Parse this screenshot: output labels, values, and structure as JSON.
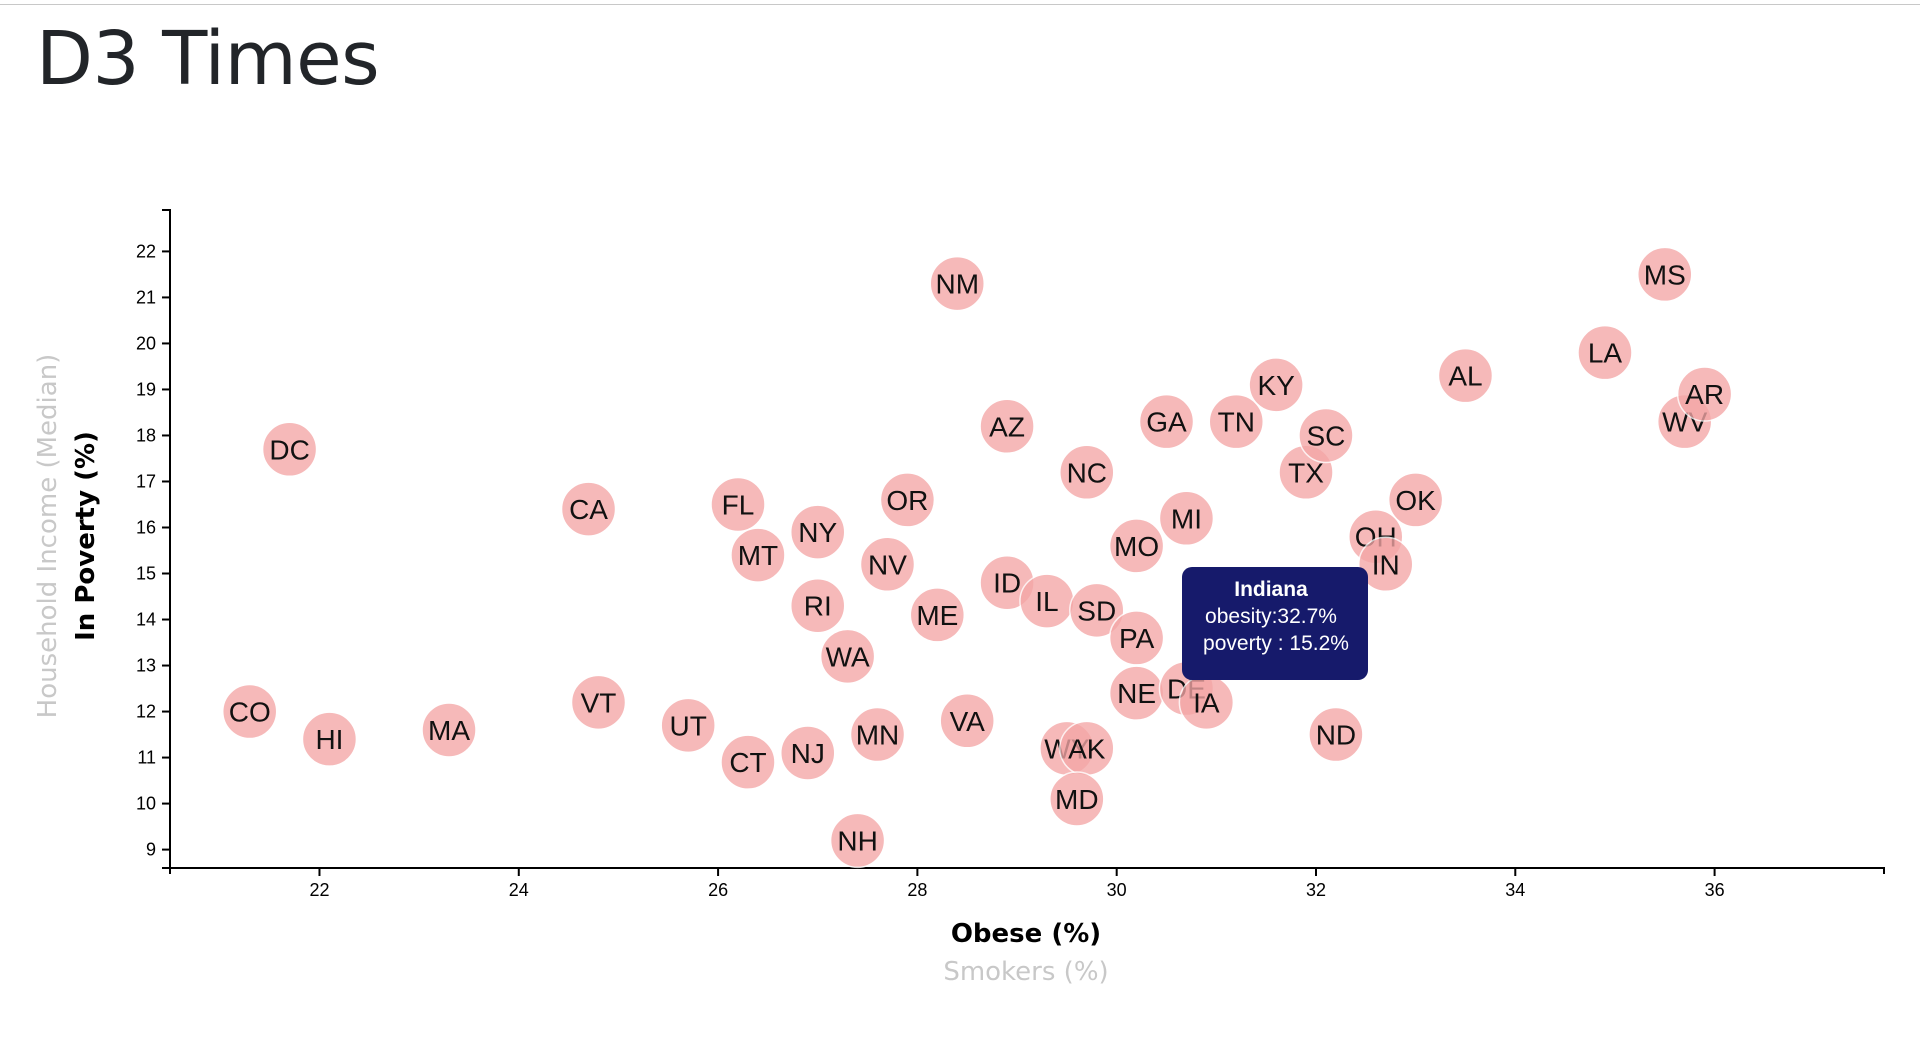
{
  "page": {
    "title": "D3 Times"
  },
  "axes": {
    "x_active": "Obese (%)",
    "x_inactive": "Smokers (%)",
    "y_active": "In Poverty (%)",
    "y_inactive": "Household Income (Median)"
  },
  "tooltip": {
    "state": "Indiana",
    "line1": "obesity:32.7%",
    "line2": "poverty : 15.2%"
  },
  "chart_data": {
    "type": "scatter",
    "xlabel": "Obese (%)",
    "ylabel": "In Poverty (%)",
    "xlim": [
      20.5,
      37.7
    ],
    "ylim": [
      8.6,
      22.9
    ],
    "xticks": [
      22,
      24,
      26,
      28,
      30,
      32,
      34,
      36
    ],
    "yticks": [
      9,
      10,
      11,
      12,
      13,
      14,
      15,
      16,
      17,
      18,
      19,
      20,
      21,
      22
    ],
    "grid": false,
    "point_color": "#f4a6a6",
    "tooltip_color": "#161a6b",
    "points": [
      {
        "abbr": "DC",
        "x": 21.7,
        "y": 17.7
      },
      {
        "abbr": "CO",
        "x": 21.3,
        "y": 12.0
      },
      {
        "abbr": "HI",
        "x": 22.1,
        "y": 11.4
      },
      {
        "abbr": "MA",
        "x": 23.3,
        "y": 11.6
      },
      {
        "abbr": "CA",
        "x": 24.7,
        "y": 16.4
      },
      {
        "abbr": "VT",
        "x": 24.8,
        "y": 12.2
      },
      {
        "abbr": "UT",
        "x": 25.7,
        "y": 11.7
      },
      {
        "abbr": "CT",
        "x": 26.3,
        "y": 10.9
      },
      {
        "abbr": "FL",
        "x": 26.2,
        "y": 16.5
      },
      {
        "abbr": "MT",
        "x": 26.4,
        "y": 15.4
      },
      {
        "abbr": "NY",
        "x": 27.0,
        "y": 15.9
      },
      {
        "abbr": "NJ",
        "x": 26.9,
        "y": 11.1
      },
      {
        "abbr": "RI",
        "x": 27.0,
        "y": 14.3
      },
      {
        "abbr": "WA",
        "x": 27.3,
        "y": 13.2
      },
      {
        "abbr": "NH",
        "x": 27.4,
        "y": 9.2
      },
      {
        "abbr": "MN",
        "x": 27.6,
        "y": 11.5
      },
      {
        "abbr": "NV",
        "x": 27.7,
        "y": 15.2
      },
      {
        "abbr": "OR",
        "x": 27.9,
        "y": 16.6
      },
      {
        "abbr": "ME",
        "x": 28.2,
        "y": 14.1
      },
      {
        "abbr": "NM",
        "x": 28.4,
        "y": 21.3
      },
      {
        "abbr": "VA",
        "x": 28.5,
        "y": 11.8
      },
      {
        "abbr": "AZ",
        "x": 28.9,
        "y": 18.2
      },
      {
        "abbr": "ID",
        "x": 28.9,
        "y": 14.8
      },
      {
        "abbr": "IL",
        "x": 29.3,
        "y": 14.4
      },
      {
        "abbr": "WY",
        "x": 29.5,
        "y": 11.2
      },
      {
        "abbr": "AK",
        "x": 29.7,
        "y": 11.2
      },
      {
        "abbr": "MD",
        "x": 29.6,
        "y": 10.1
      },
      {
        "abbr": "NC",
        "x": 29.7,
        "y": 17.2
      },
      {
        "abbr": "SD",
        "x": 29.8,
        "y": 14.2
      },
      {
        "abbr": "MO",
        "x": 30.2,
        "y": 15.6
      },
      {
        "abbr": "PA",
        "x": 30.2,
        "y": 13.6
      },
      {
        "abbr": "NE",
        "x": 30.2,
        "y": 12.4
      },
      {
        "abbr": "GA",
        "x": 30.5,
        "y": 18.3
      },
      {
        "abbr": "DE",
        "x": 30.7,
        "y": 12.5
      },
      {
        "abbr": "IA",
        "x": 30.9,
        "y": 12.2
      },
      {
        "abbr": "MI",
        "x": 30.7,
        "y": 16.2
      },
      {
        "abbr": "TN",
        "x": 31.2,
        "y": 18.3
      },
      {
        "abbr": "KY",
        "x": 31.6,
        "y": 19.1
      },
      {
        "abbr": "TX",
        "x": 31.9,
        "y": 17.2
      },
      {
        "abbr": "SC",
        "x": 32.1,
        "y": 18.0
      },
      {
        "abbr": "ND",
        "x": 32.2,
        "y": 11.5
      },
      {
        "abbr": "OH",
        "x": 32.6,
        "y": 15.8
      },
      {
        "abbr": "IN",
        "x": 32.7,
        "y": 15.2
      },
      {
        "abbr": "OK",
        "x": 33.0,
        "y": 16.6
      },
      {
        "abbr": "AL",
        "x": 33.5,
        "y": 19.3
      },
      {
        "abbr": "LA",
        "x": 34.9,
        "y": 19.8
      },
      {
        "abbr": "MS",
        "x": 35.5,
        "y": 21.5
      },
      {
        "abbr": "WV",
        "x": 35.7,
        "y": 18.3
      },
      {
        "abbr": "AR",
        "x": 35.9,
        "y": 18.9
      }
    ]
  }
}
